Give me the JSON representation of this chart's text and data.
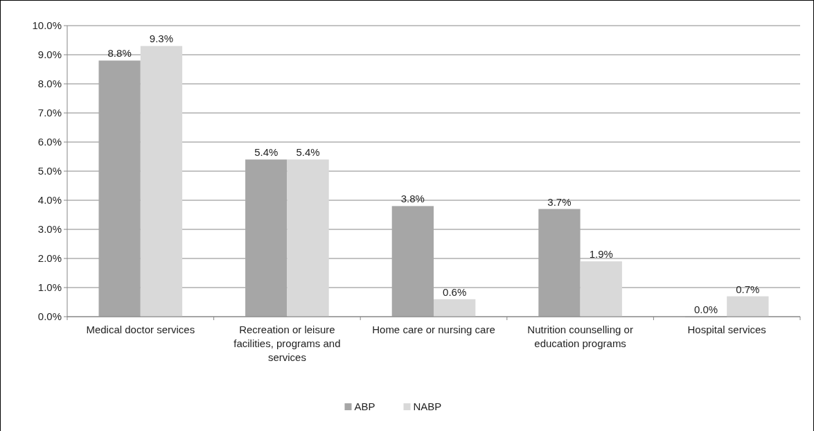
{
  "chart_data": {
    "type": "bar",
    "categories": [
      "Medical doctor services",
      "Recreation or leisure facilities, programs and services",
      "Home care or nursing care",
      "Nutrition counselling or education programs",
      "Hospital services"
    ],
    "series": [
      {
        "name": "ABP",
        "color": "#a6a6a6",
        "values": [
          8.8,
          5.4,
          3.8,
          3.7,
          0.0
        ],
        "value_labels": [
          "8.8%",
          "5.4%",
          "3.8%",
          "3.7%",
          "0.0%"
        ]
      },
      {
        "name": "NABP",
        "color": "#d9d9d9",
        "values": [
          9.3,
          5.4,
          0.6,
          1.9,
          0.7
        ],
        "value_labels": [
          "9.3%",
          "5.4%",
          "0.6%",
          "1.9%",
          "0.7%"
        ]
      }
    ],
    "ylim": [
      0,
      10
    ],
    "yticks": [
      {
        "value": 0,
        "label": "0.0%"
      },
      {
        "value": 1,
        "label": "1.0%"
      },
      {
        "value": 2,
        "label": "2.0%"
      },
      {
        "value": 3,
        "label": "3.0%"
      },
      {
        "value": 4,
        "label": "4.0%"
      },
      {
        "value": 5,
        "label": "5.0%"
      },
      {
        "value": 6,
        "label": "6.0%"
      },
      {
        "value": 7,
        "label": "7.0%"
      },
      {
        "value": 8,
        "label": "8.0%"
      },
      {
        "value": 9,
        "label": "9.0%"
      },
      {
        "value": 10,
        "label": "10.0%"
      }
    ],
    "grid": "y",
    "legend": "bottom"
  }
}
